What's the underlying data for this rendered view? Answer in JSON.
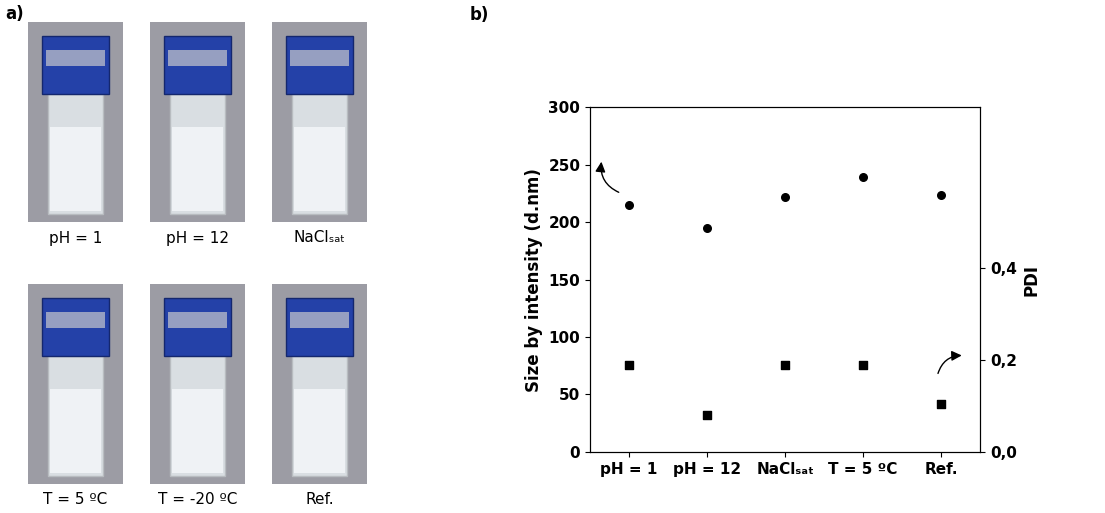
{
  "panel_a": {
    "label": "a)",
    "samples": [
      "pH = 1",
      "pH = 12",
      "NaClₛₐₜ",
      "T = 5 ºC",
      "T = -20 ºC",
      "Ref."
    ]
  },
  "chart_data": {
    "type": "scatter",
    "title": "b)",
    "categories": [
      "pH = 1",
      "pH = 12",
      "NaClₛₐₜ",
      "T = 5 ºC",
      "Ref."
    ],
    "y_label": "Size by intensity (d.nm)",
    "y2_label": "PDI",
    "ylim": [
      0,
      300
    ],
    "yticks": [
      0,
      50,
      100,
      150,
      200,
      250,
      300
    ],
    "y2lim": [
      0,
      0.75
    ],
    "y2ticks": [
      {
        "value": 0,
        "label": "0,0"
      },
      {
        "value": 0.2,
        "label": "0,2"
      },
      {
        "value": 0.4,
        "label": "0,4"
      }
    ],
    "series": [
      {
        "values": [
          215,
          195,
          222,
          239,
          224
        ],
        "color": "#000000",
        "marker": "circle"
      },
      {
        "values": [
          0.19,
          0.08,
          0.19,
          0.19,
          0.105
        ],
        "color": "#000000",
        "marker": "square",
        "axis": "y2"
      }
    ]
  }
}
